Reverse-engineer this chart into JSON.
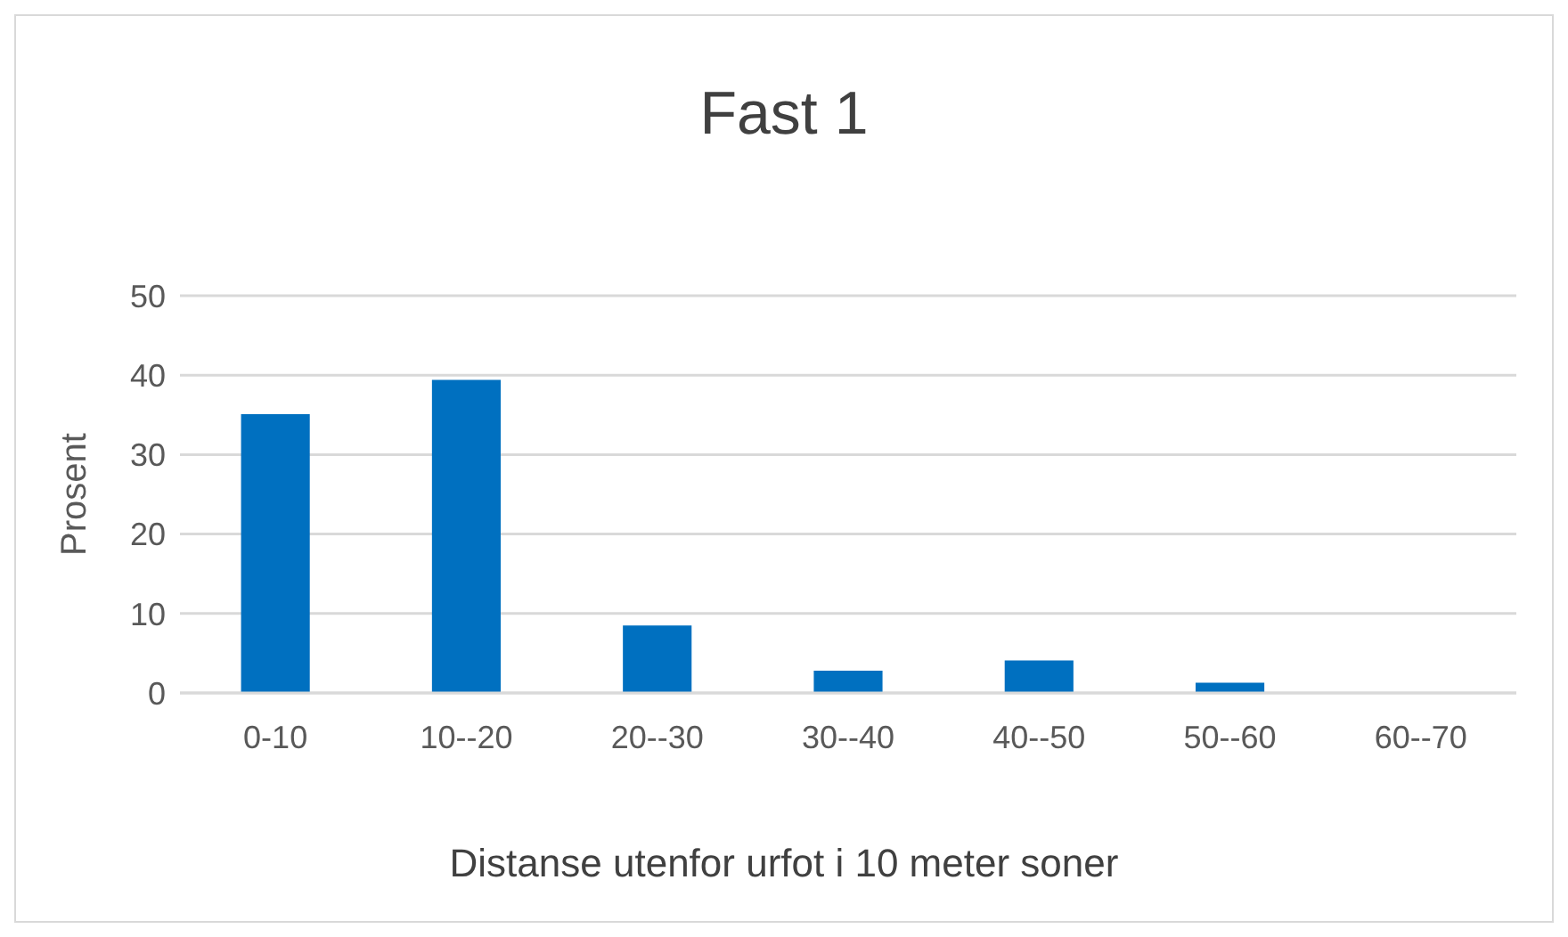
{
  "chart_data": {
    "type": "bar",
    "title": "Fast 1",
    "xlabel": "Distanse utenfor urfot i 10 meter soner",
    "ylabel": "Prosent",
    "categories": [
      "0-10",
      "10--20",
      "20--30",
      "30--40",
      "40--50",
      "50--60",
      "60--70"
    ],
    "series": [
      {
        "color": "#0070c0",
        "values": [
          35.1,
          39.4,
          8.5,
          2.8,
          4.1,
          1.3,
          0
        ]
      }
    ],
    "ylim": [
      0,
      50
    ],
    "yticks": [
      0,
      10,
      20,
      30,
      40,
      50
    ],
    "grid": "y"
  }
}
